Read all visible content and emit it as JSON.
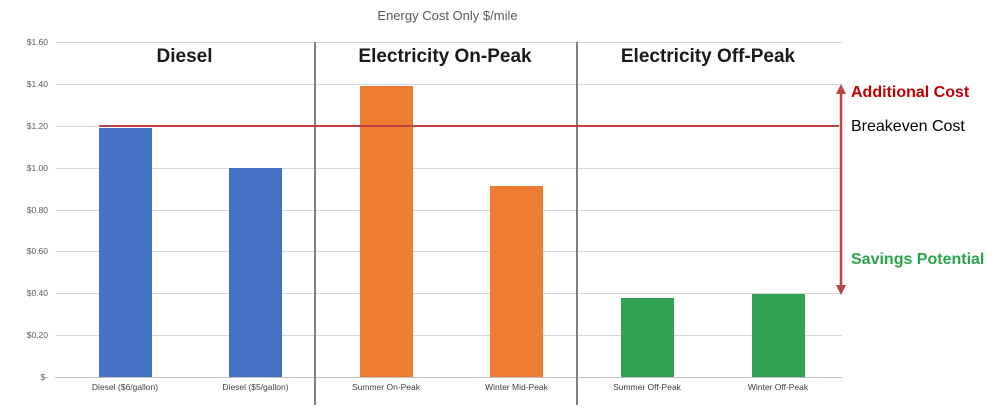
{
  "title": "Energy Cost Only $/mile",
  "sections": [
    {
      "label": "Diesel"
    },
    {
      "label": "Electricity On-Peak"
    },
    {
      "label": "Electricity Off-Peak"
    }
  ],
  "annotations": {
    "additional_cost": {
      "label": "Additional Cost",
      "color": "#c00000"
    },
    "breakeven_cost": {
      "label": "Breakeven Cost",
      "color": "#000000",
      "value": 1.2
    },
    "savings_potential": {
      "label": "Savings Potential",
      "color": "#29a44b"
    }
  },
  "chart_data": {
    "type": "bar",
    "title": "Energy Cost Only $/mile",
    "categories": [
      "Diesel ($6/gallon)",
      "Diesel ($5/gallon)",
      "Summer On-Peak",
      "Winter Mid-Peak",
      "Summer Off-Peak",
      "Winter Off-Peak"
    ],
    "values": [
      1.19,
      1.0,
      1.39,
      0.91,
      0.375,
      0.395
    ],
    "groups": [
      "Diesel",
      "Diesel",
      "Electricity On-Peak",
      "Electricity On-Peak",
      "Electricity Off-Peak",
      "Electricity Off-Peak"
    ],
    "bar_colors": [
      "#4472c4",
      "#4472c4",
      "#ed7d31",
      "#ed7d31",
      "#31a24f",
      "#31a24f"
    ],
    "xlabel": "",
    "ylabel": "",
    "ylim": [
      0,
      1.6
    ],
    "ytick_step": 0.2,
    "ytick_labels": [
      "$1.60",
      "$1.40",
      "$1.20",
      "$1.00",
      "$0.80",
      "$0.60",
      "$0.40",
      "$0.20",
      "$-"
    ],
    "breakeven_value": 1.2,
    "grid": true,
    "legend": false
  }
}
